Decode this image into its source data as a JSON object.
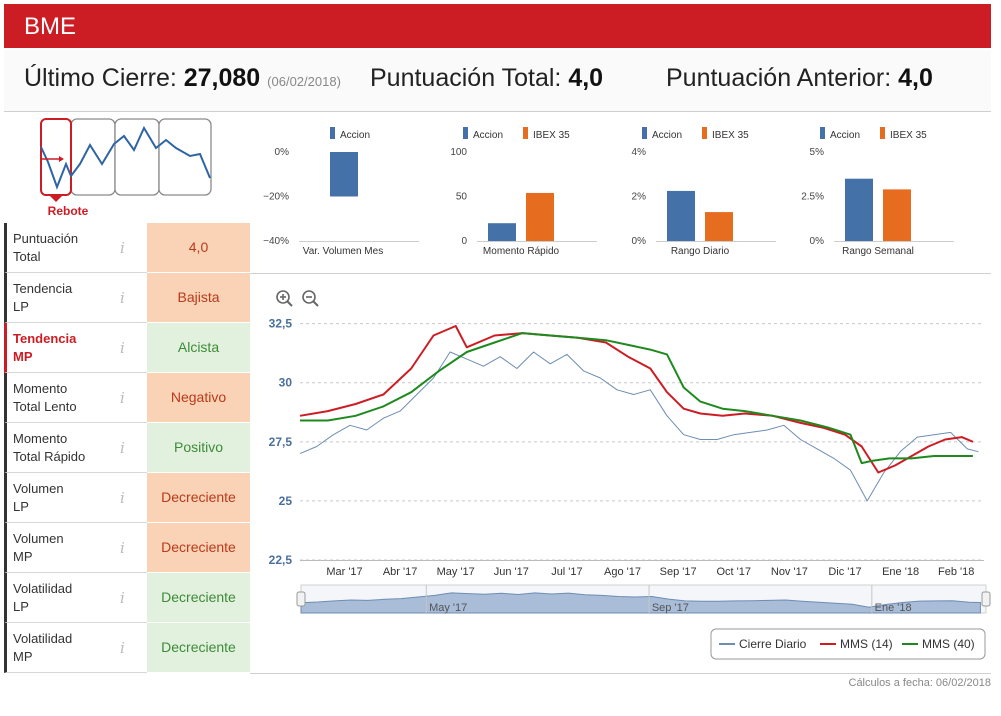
{
  "header": {
    "title": "BME"
  },
  "summary": {
    "last_close_label": "Último Cierre:",
    "last_close_value": "27,080",
    "last_close_date": "(06/02/2018)",
    "total_score_label": "Puntuación Total:",
    "total_score_value": "4,0",
    "prev_score_label": "Puntuación Anterior:",
    "prev_score_value": "4,0"
  },
  "pattern": {
    "label": "Rebote"
  },
  "indicators": [
    {
      "label_line1": "Puntuación",
      "label_line2": "Total",
      "value": "4,0",
      "tone": "neg",
      "active": false
    },
    {
      "label_line1": "Tendencia",
      "label_line2": "LP",
      "value": "Bajista",
      "tone": "neg",
      "active": false
    },
    {
      "label_line1": "Tendencia",
      "label_line2": "MP",
      "value": "Alcista",
      "tone": "pos",
      "active": true
    },
    {
      "label_line1": "Momento",
      "label_line2": "Total Lento",
      "value": "Negativo",
      "tone": "neg",
      "active": false
    },
    {
      "label_line1": "Momento",
      "label_line2": "Total Rápido",
      "value": "Positivo",
      "tone": "pos",
      "active": false
    },
    {
      "label_line1": "Volumen",
      "label_line2": "LP",
      "value": "Decreciente",
      "tone": "neg",
      "active": false
    },
    {
      "label_line1": "Volumen",
      "label_line2": "MP",
      "value": "Decreciente",
      "tone": "neg",
      "active": false
    },
    {
      "label_line1": "Volatilidad",
      "label_line2": "LP",
      "value": "Decreciente",
      "tone": "pos",
      "active": false
    },
    {
      "label_line1": "Volatilidad",
      "label_line2": "MP",
      "value": "Decreciente",
      "tone": "pos",
      "active": false
    }
  ],
  "info_icon": "i",
  "footer": "Cálculos a fecha: 06/02/2018",
  "colors": {
    "red": "#cc1d24",
    "blue": "#4472a8",
    "orange": "#e66c1f",
    "green": "#1e8a1e",
    "navy": "#6d8db3"
  },
  "chart_data": [
    {
      "type": "bar",
      "title": "Var. Volumen Mes",
      "legend": [
        "Accion"
      ],
      "series": [
        {
          "name": "Accion",
          "values": [
            -20
          ]
        }
      ],
      "ylim": [
        -40,
        0
      ],
      "ticks": [
        0,
        -20,
        -40
      ],
      "tick_labels": [
        "0%",
        "−20%",
        "−40%"
      ]
    },
    {
      "type": "bar",
      "title": "Momento Rápido",
      "legend": [
        "Accion",
        "IBEX 35"
      ],
      "series": [
        {
          "name": "Accion",
          "values": [
            20
          ]
        },
        {
          "name": "IBEX 35",
          "values": [
            54
          ]
        }
      ],
      "ylim": [
        0,
        100
      ],
      "ticks": [
        0,
        50,
        100
      ],
      "tick_labels": [
        "0",
        "50",
        "100"
      ]
    },
    {
      "type": "bar",
      "title": "Rango Diario",
      "legend": [
        "Accion",
        "IBEX 35"
      ],
      "series": [
        {
          "name": "Accion",
          "values": [
            2.25
          ]
        },
        {
          "name": "IBEX 35",
          "values": [
            1.3
          ]
        }
      ],
      "ylim": [
        0,
        4
      ],
      "ticks": [
        0,
        2,
        4
      ],
      "tick_labels": [
        "0%",
        "2%",
        "4%"
      ]
    },
    {
      "type": "bar",
      "title": "Rango Semanal",
      "legend": [
        "Accion",
        "IBEX 35"
      ],
      "series": [
        {
          "name": "Accion",
          "values": [
            3.5
          ]
        },
        {
          "name": "IBEX 35",
          "values": [
            2.9
          ]
        }
      ],
      "ylim": [
        0,
        5
      ],
      "ticks": [
        0,
        2.5,
        5
      ],
      "tick_labels": [
        "0%",
        "2.5%",
        "5%"
      ]
    },
    {
      "type": "line",
      "title": "",
      "ylim": [
        22.5,
        33.5
      ],
      "y_ticks": [
        22.5,
        25,
        27.5,
        30,
        32.5
      ],
      "y_tick_labels": [
        "22,5",
        "25",
        "27,5",
        "30",
        "32,5"
      ],
      "x_range": [
        0,
        12.3
      ],
      "x_tick_pos": [
        0.8,
        1.8,
        2.8,
        3.8,
        4.8,
        5.8,
        6.8,
        7.8,
        8.8,
        9.8,
        10.8,
        11.8
      ],
      "x_tick_labels": [
        "Mar '17",
        "Abr '17",
        "May '17",
        "Jun '17",
        "Jul '17",
        "Ago '17",
        "Sep '17",
        "Oct '17",
        "Nov '17",
        "Dic '17",
        "Ene '18",
        "Feb '18"
      ],
      "navigator_labels": [
        "May '17",
        "Sep '17",
        "Ene '18"
      ],
      "legend": [
        "Cierre Diario",
        "MMS (14)",
        "MMS (40)"
      ],
      "series": [
        {
          "name": "Cierre Diario",
          "x": [
            0,
            0.3,
            0.6,
            0.9,
            1.2,
            1.5,
            1.8,
            2.1,
            2.4,
            2.7,
            3.0,
            3.3,
            3.6,
            3.9,
            4.2,
            4.5,
            4.8,
            5.1,
            5.4,
            5.7,
            6.0,
            6.3,
            6.6,
            6.9,
            7.2,
            7.5,
            7.8,
            8.1,
            8.4,
            8.7,
            9.0,
            9.3,
            9.6,
            9.9,
            10.2,
            10.5,
            10.8,
            11.1,
            11.4,
            11.7,
            12.0,
            12.2
          ],
          "values": [
            27.0,
            27.3,
            27.8,
            28.2,
            28.0,
            28.5,
            28.8,
            29.5,
            30.2,
            31.3,
            31.0,
            30.7,
            31.1,
            30.6,
            31.3,
            30.8,
            31.2,
            30.5,
            30.2,
            29.7,
            29.5,
            29.7,
            28.6,
            27.8,
            27.6,
            27.6,
            27.8,
            27.9,
            28.0,
            28.2,
            27.6,
            27.2,
            26.8,
            26.3,
            25.0,
            26.2,
            27.1,
            27.7,
            27.8,
            27.9,
            27.2,
            27.08
          ]
        },
        {
          "name": "MMS (14)",
          "x": [
            0,
            0.5,
            1.0,
            1.5,
            2.0,
            2.4,
            2.8,
            3.0,
            3.5,
            4.0,
            4.5,
            5.0,
            5.5,
            5.9,
            6.3,
            6.6,
            6.9,
            7.2,
            7.6,
            8.0,
            8.5,
            9.0,
            9.4,
            9.8,
            10.1,
            10.4,
            10.7,
            11.0,
            11.3,
            11.6,
            11.9,
            12.1
          ],
          "values": [
            28.6,
            28.8,
            29.1,
            29.5,
            30.6,
            32.0,
            32.4,
            31.5,
            32.0,
            32.1,
            32.0,
            31.9,
            31.7,
            31.1,
            30.6,
            29.6,
            28.9,
            28.7,
            28.6,
            28.7,
            28.6,
            28.3,
            28.1,
            27.8,
            27.3,
            26.2,
            26.5,
            26.9,
            27.3,
            27.6,
            27.7,
            27.5
          ]
        },
        {
          "name": "MMS (40)",
          "x": [
            0,
            0.5,
            1.0,
            1.5,
            2.0,
            2.5,
            3.0,
            3.5,
            4.0,
            4.5,
            5.0,
            5.5,
            5.9,
            6.3,
            6.6,
            6.9,
            7.2,
            7.6,
            8.0,
            8.5,
            9.0,
            9.5,
            9.9,
            10.1,
            10.3,
            10.6,
            11.0,
            11.4,
            11.8,
            12.1
          ],
          "values": [
            28.4,
            28.4,
            28.6,
            29.0,
            29.6,
            30.5,
            31.3,
            31.7,
            32.1,
            32.0,
            31.9,
            31.8,
            31.6,
            31.4,
            31.2,
            29.8,
            29.2,
            28.9,
            28.8,
            28.6,
            28.4,
            28.1,
            27.8,
            26.6,
            26.7,
            26.8,
            26.8,
            26.9,
            26.9,
            26.9
          ]
        }
      ]
    }
  ]
}
